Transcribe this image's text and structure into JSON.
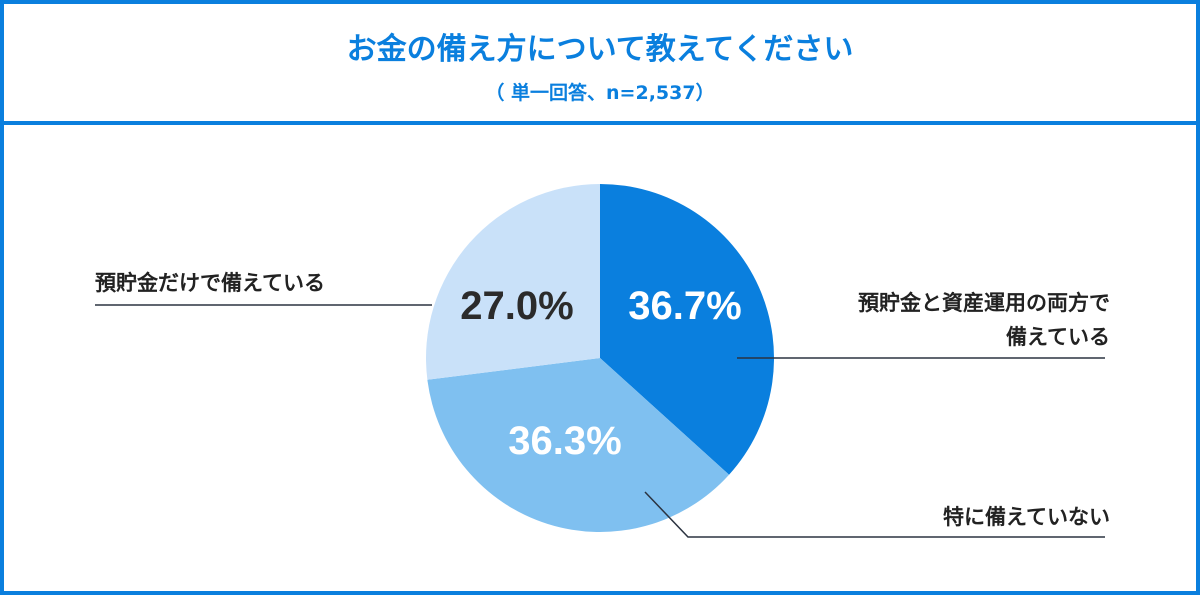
{
  "header": {
    "title": "お金の備え方について教えてください",
    "subtitle": "（ 単一回答、n=2,537）"
  },
  "chart_data": {
    "type": "pie",
    "title": "お金の備え方について教えてください",
    "subtitle": "（ 単一回答、n=2,537）",
    "slices": [
      {
        "label": "預貯金と資産運用の両方で備えている",
        "value": 36.7,
        "display": "36.7%",
        "color": "#0a7fde",
        "text_color": "#ffffff"
      },
      {
        "label": "特に備えていない",
        "value": 36.3,
        "display": "36.3%",
        "color": "#7fc0f0",
        "text_color": "#ffffff"
      },
      {
        "label": "預貯金だけで備えている",
        "value": 27.0,
        "display": "27.0%",
        "color": "#c9e1f9",
        "text_color": "#2b2b2b"
      }
    ],
    "start": "top",
    "direction": "clockwise"
  }
}
